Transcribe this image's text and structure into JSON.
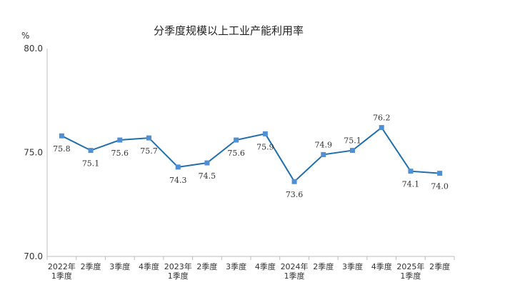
{
  "chart_data": {
    "type": "line",
    "title": "分季度规模以上工业产能利用率",
    "ylabel": "%",
    "ylim": [
      70,
      80
    ],
    "yticks": [
      "70.0",
      "75.0",
      "80.0"
    ],
    "categories": [
      [
        "2022年",
        "1季度"
      ],
      [
        "2季度"
      ],
      [
        "3季度"
      ],
      [
        "4季度"
      ],
      [
        "2023年",
        "1季度"
      ],
      [
        "2季度"
      ],
      [
        "3季度"
      ],
      [
        "4季度"
      ],
      [
        "2024年",
        "1季度"
      ],
      [
        "2季度"
      ],
      [
        "3季度"
      ],
      [
        "4季度"
      ],
      [
        "2025年",
        "1季度"
      ],
      [
        "2季度"
      ]
    ],
    "values": [
      75.8,
      75.1,
      75.6,
      75.7,
      74.3,
      74.5,
      75.6,
      75.9,
      73.6,
      74.9,
      75.1,
      76.2,
      74.1,
      74.0
    ],
    "data_labels": [
      "75.8",
      "75.1",
      "75.6",
      "75.7",
      "74.3",
      "74.5",
      "75.6",
      "75.9",
      "73.6",
      "74.9",
      "75.1",
      "76.2",
      "74.1",
      "74.0"
    ],
    "label_below": [
      true,
      true,
      true,
      true,
      true,
      true,
      true,
      true,
      true,
      false,
      false,
      false,
      true,
      true
    ],
    "line_color": "#1f6fad",
    "marker_color": "#4f8fd6",
    "axis_color": "#bdbdbd",
    "grid": false,
    "legend": "none"
  }
}
